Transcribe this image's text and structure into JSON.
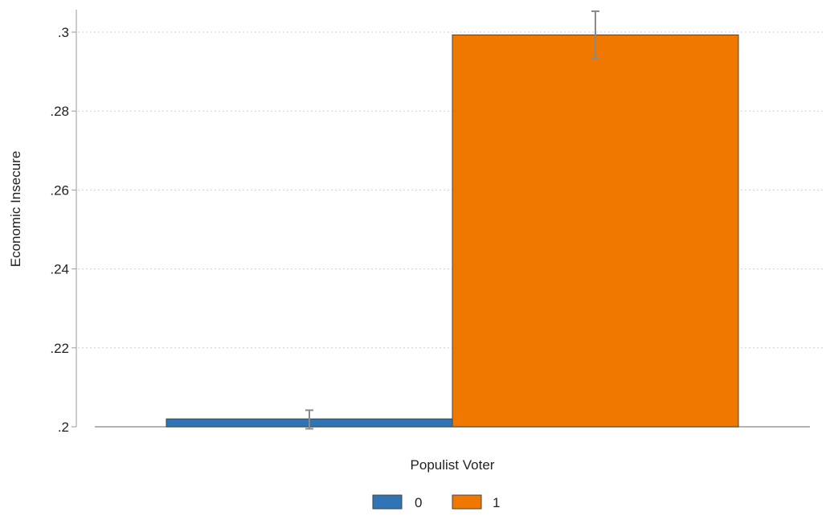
{
  "chart_data": {
    "type": "bar",
    "title": "",
    "xlabel": "Populist Voter",
    "ylabel": "Economic Insecure",
    "categories": [
      "0",
      "1"
    ],
    "series": [
      {
        "name": "0",
        "color": "#2f74b5",
        "value": 0.202,
        "ci": [
          0.1995,
          0.2042
        ]
      },
      {
        "name": "1",
        "color": "#f07800",
        "value": 0.2993,
        "ci": [
          0.2934,
          0.3053
        ]
      }
    ],
    "ylim": [
      0.2,
      0.3
    ],
    "yticks": [
      {
        "value": 0.2,
        "label": ".2"
      },
      {
        "value": 0.22,
        "label": ".22"
      },
      {
        "value": 0.24,
        "label": ".24"
      },
      {
        "value": 0.26,
        "label": ".26"
      },
      {
        "value": 0.28,
        "label": ".28"
      },
      {
        "value": 0.3,
        "label": ".3"
      }
    ],
    "grid": true,
    "legend_position": "bottom",
    "error_bars": true
  }
}
